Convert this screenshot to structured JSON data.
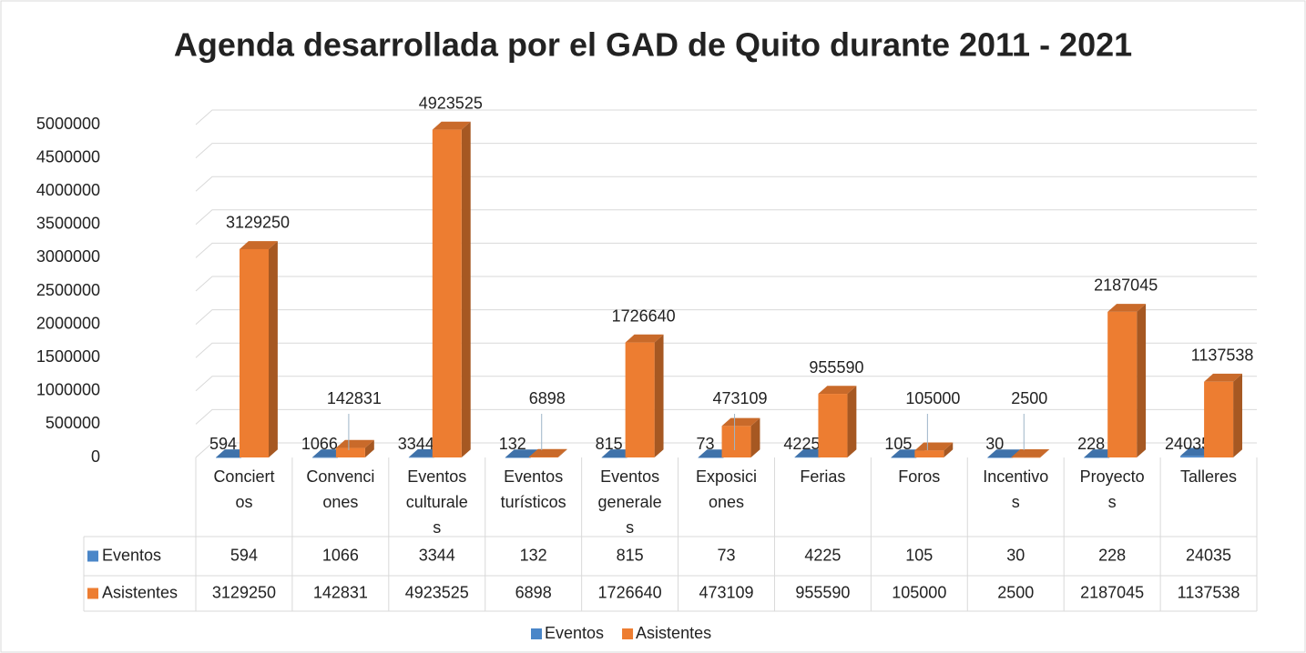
{
  "chart_data": {
    "type": "bar3d",
    "title": "Agenda desarrollada por el GAD de Quito durante 2011 - 2021",
    "categories": [
      "Conciertos",
      "Convenciones",
      "Eventos culturales",
      "Eventos turísticos",
      "Eventos generales",
      "Exposiciones",
      "Ferias",
      "Foros",
      "Incentivos",
      "Proyectos",
      "Talleres"
    ],
    "series": [
      {
        "name": "Eventos",
        "color": "#4a86c8",
        "values": [
          594,
          1066,
          3344,
          132,
          815,
          73,
          4225,
          105,
          30,
          228,
          24035
        ]
      },
      {
        "name": "Asistentes",
        "color": "#ed7d31",
        "values": [
          3129250,
          142831,
          4923525,
          6898,
          1726640,
          473109,
          955590,
          105000,
          2500,
          2187045,
          1137538
        ]
      }
    ],
    "ylim": [
      0,
      5000000
    ],
    "yticks": [
      0,
      500000,
      1000000,
      1500000,
      2000000,
      2500000,
      3000000,
      3500000,
      4000000,
      4500000,
      5000000
    ],
    "grid": true,
    "legend": "bottom",
    "data_table": true
  }
}
